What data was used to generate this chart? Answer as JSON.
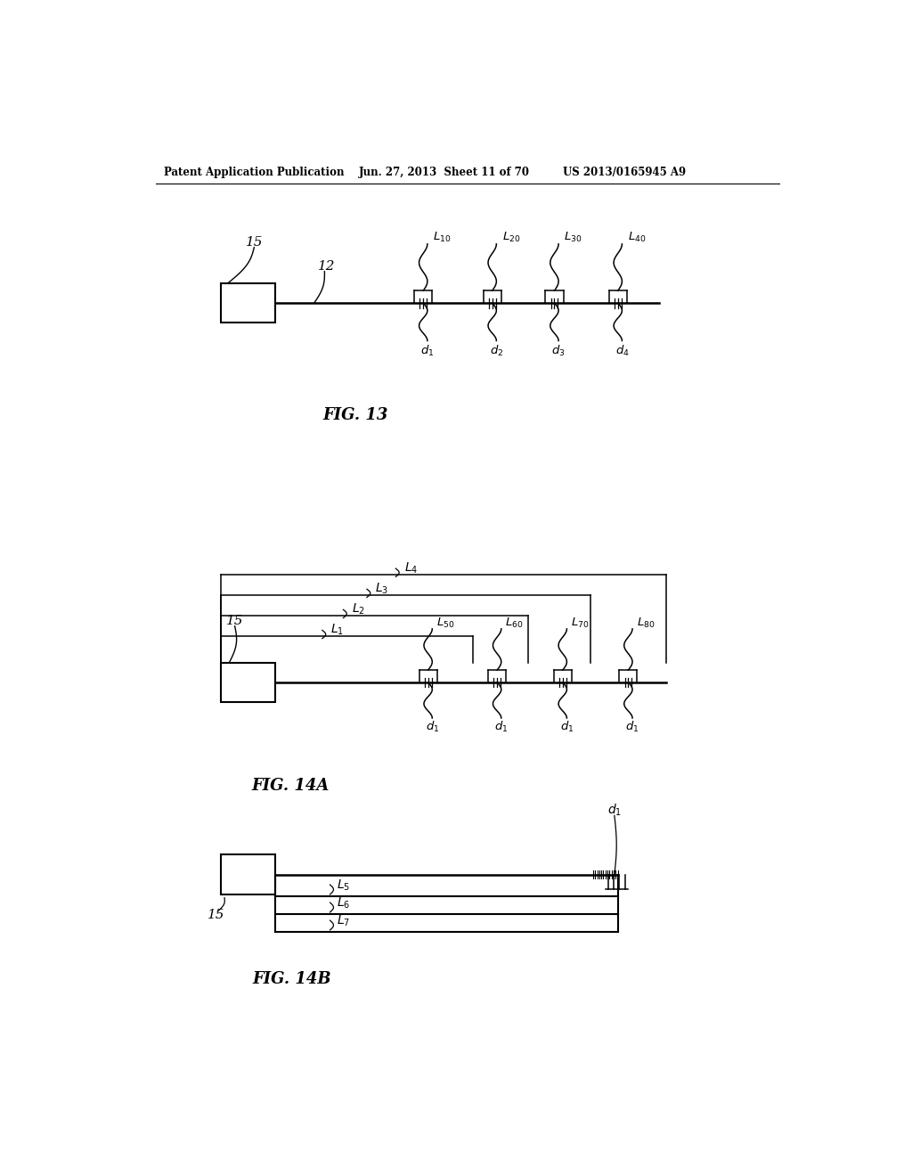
{
  "bg_color": "#ffffff",
  "header_left": "Patent Application Publication",
  "header_mid": "Jun. 27, 2013  Sheet 11 of 70",
  "header_right": "US 2013/0165945 A9"
}
